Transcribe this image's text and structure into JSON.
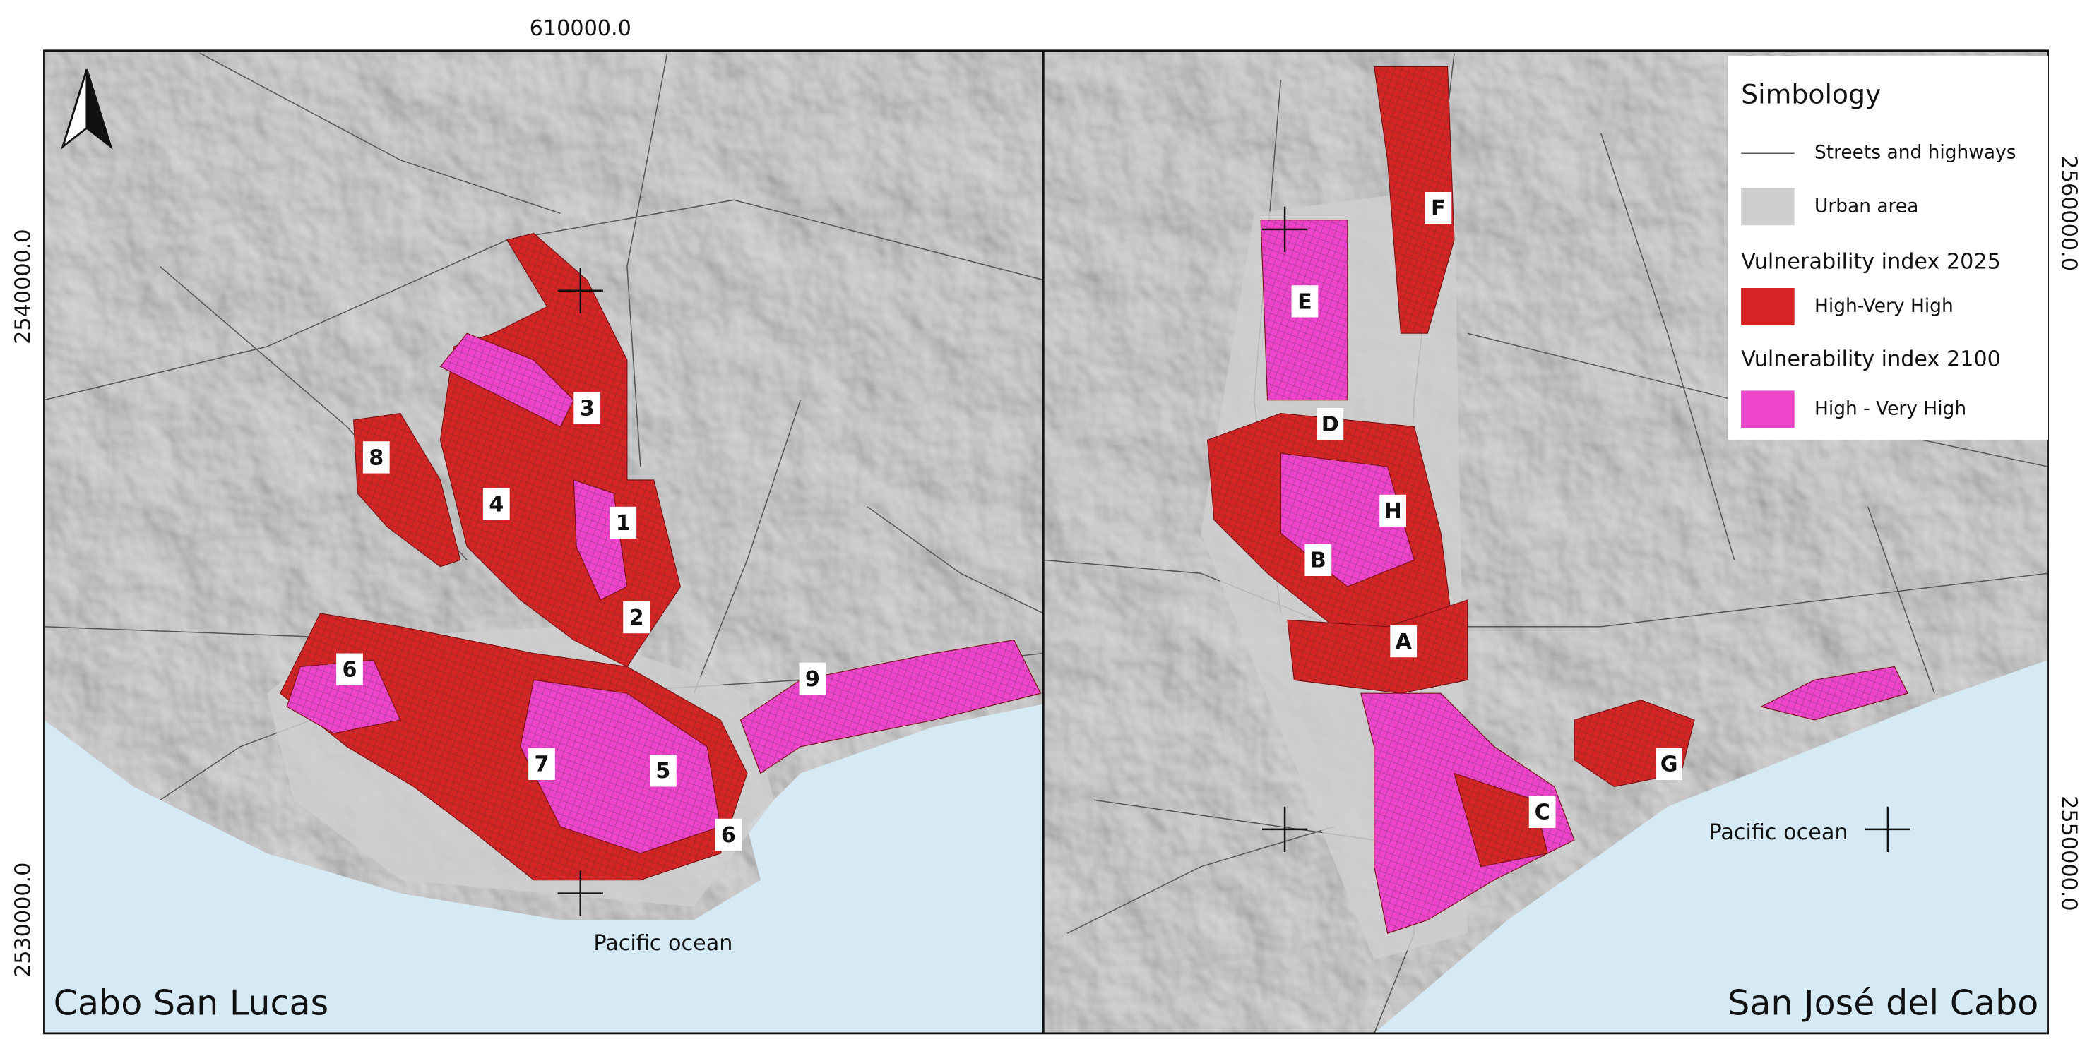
{
  "map": {
    "coordinates": {
      "top": "610000.0",
      "left_upper": "2540000.0",
      "left_lower": "2530000.0",
      "right_upper": "2560000.0",
      "right_lower": "2550000.0"
    },
    "panels": [
      {
        "name": "Cabo San Lucas",
        "ocean_label": "Pacific ocean",
        "zones": [
          "1",
          "2",
          "3",
          "4",
          "5",
          "6",
          "6",
          "7",
          "8",
          "9"
        ]
      },
      {
        "name": "San José del Cabo",
        "ocean_label": "Pacific ocean",
        "zones": [
          "A",
          "B",
          "C",
          "D",
          "E",
          "F",
          "G",
          "H"
        ]
      }
    ],
    "legend": {
      "title": "Simbology",
      "streets": {
        "label": "Streets and highways",
        "color": "#555555"
      },
      "urban": {
        "label": "Urban area",
        "color": "#cfcfcf"
      },
      "index_2025": {
        "heading": "Vulnerability index 2025",
        "label": "High-Very High",
        "color": "#d42424"
      },
      "index_2100": {
        "heading": "Vulnerability index 2100",
        "label": "High - Very High",
        "color": "#ee44cc"
      }
    }
  }
}
